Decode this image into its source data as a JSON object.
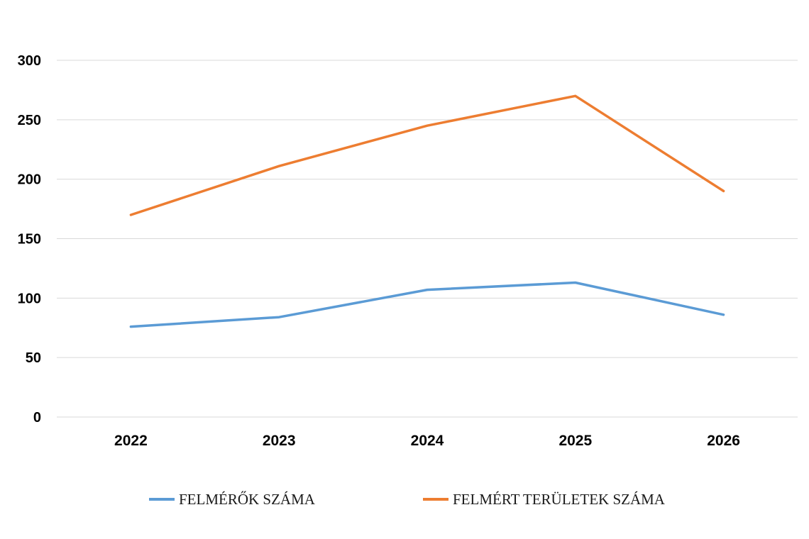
{
  "chart_data": {
    "type": "line",
    "categories": [
      "2022",
      "2023",
      "2024",
      "2025",
      "2026"
    ],
    "series": [
      {
        "name": "FELMÉRŐK SZÁMA",
        "values": [
          76,
          84,
          107,
          113,
          86
        ],
        "color": "#5b9bd5"
      },
      {
        "name": "FELMÉRT TERÜLETEK SZÁMA",
        "values": [
          170,
          211,
          245,
          270,
          190
        ],
        "color": "#ed7d31"
      }
    ],
    "ylim": [
      0,
      300
    ],
    "yticks": [
      "0",
      "50",
      "100",
      "150",
      "200",
      "250",
      "300"
    ],
    "grid": true,
    "gridline_color": "#d9d9d9",
    "legend": "bottom"
  }
}
